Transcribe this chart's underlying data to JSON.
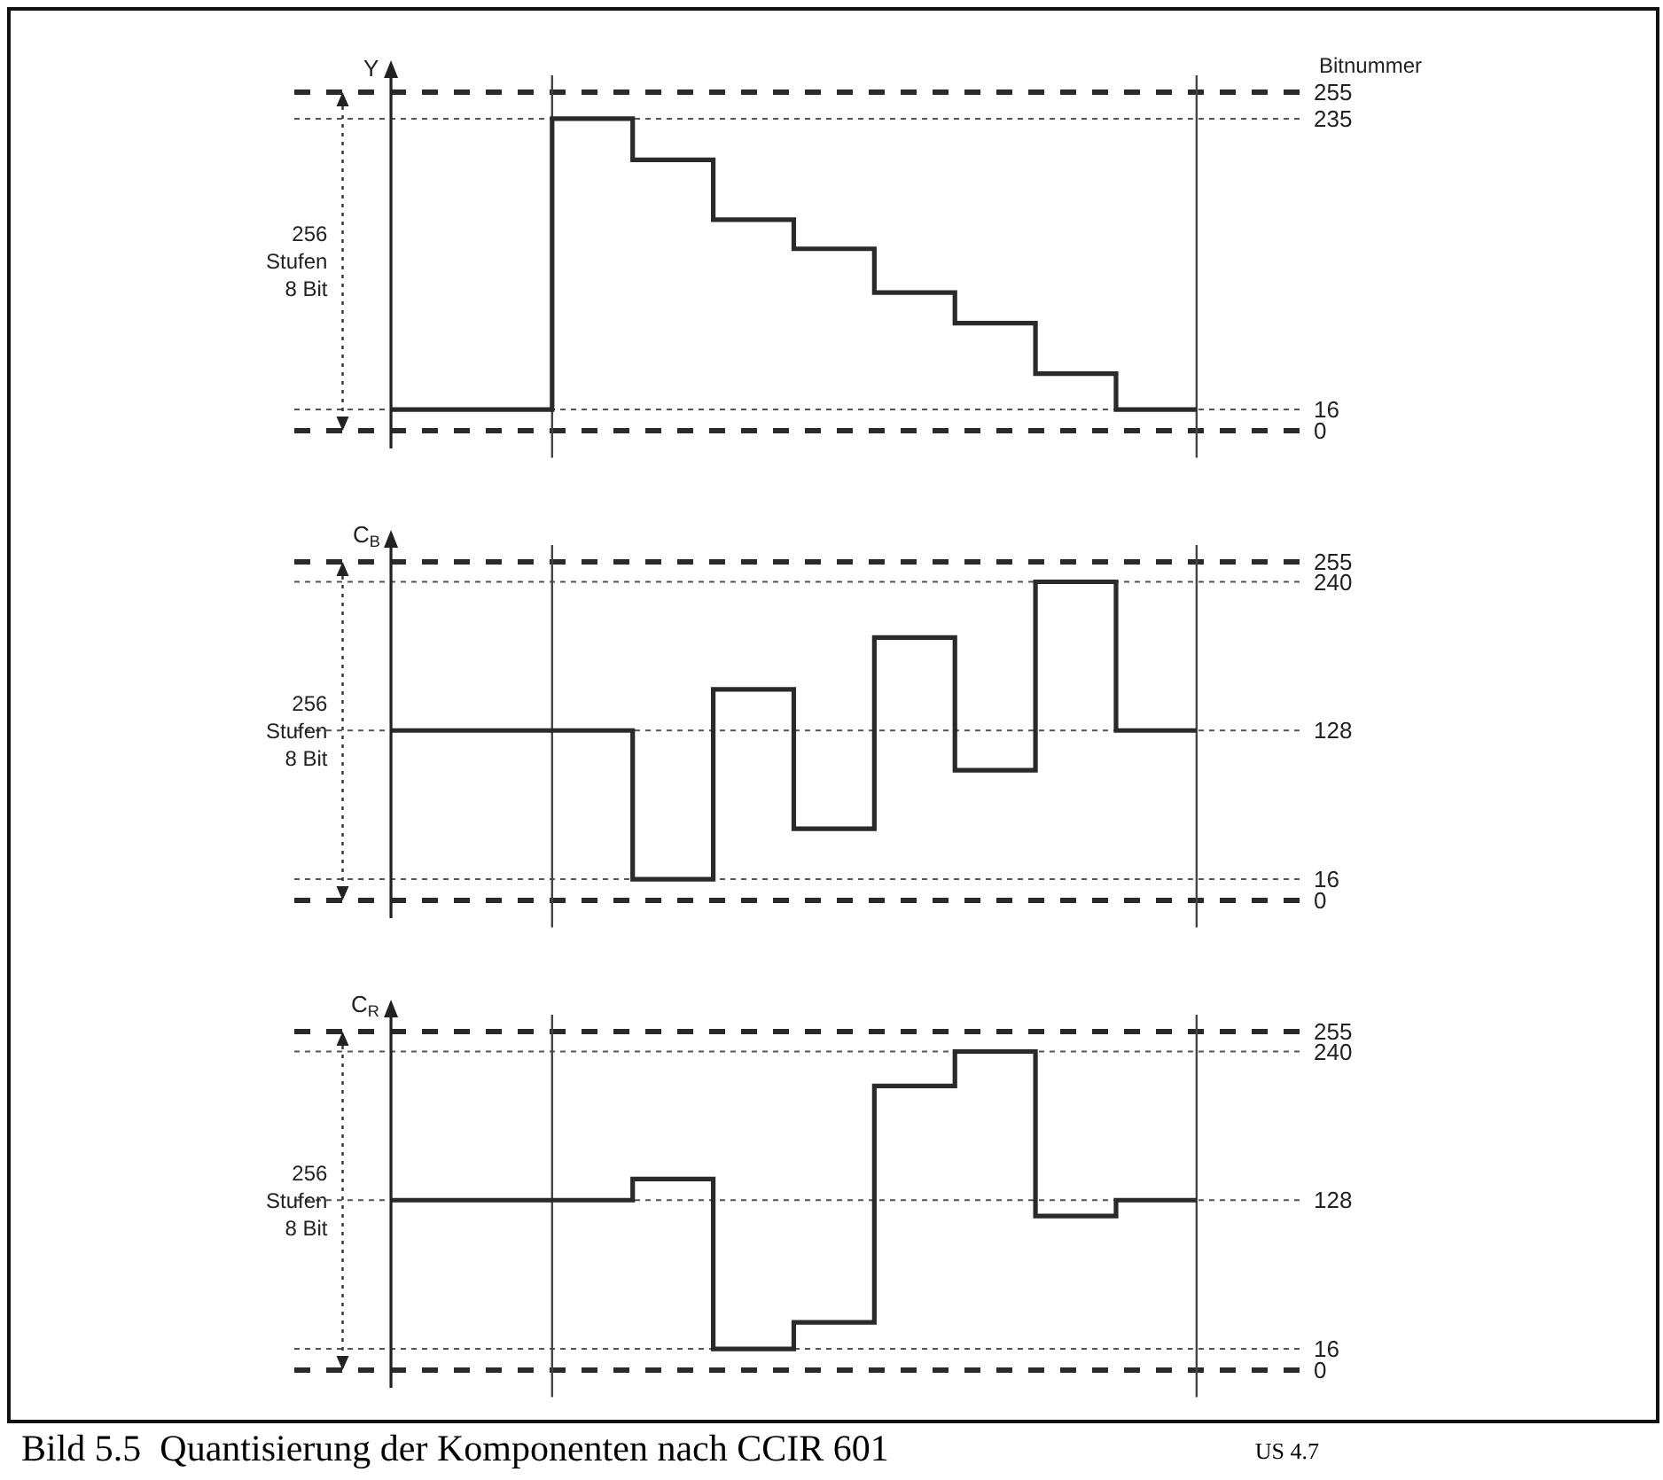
{
  "chart_data": [
    {
      "type": "step",
      "ylabel": "Y",
      "annotations": [
        "256\nStufen\n8 Bit",
        "Bitnummer"
      ],
      "categories": [
        null,
        null,
        null,
        null,
        null,
        null,
        null,
        null,
        null,
        null,
        null
      ],
      "series": [
        {
          "color": "#2a2a2a",
          "values": [
            16,
            16,
            235,
            204,
            159,
            137,
            104,
            81,
            43,
            16,
            16
          ]
        }
      ],
      "ylim": [
        0,
        255
      ],
      "yticks": [
        0,
        16,
        235,
        255
      ],
      "tick_labels": "y",
      "ref_lines": [
        {
          "axis": "y",
          "value": 255,
          "line_style": "dashed",
          "color": "#2a2a2a"
        },
        {
          "axis": "y",
          "value": 0,
          "line_style": "dashed",
          "color": "#2a2a2a"
        },
        {
          "axis": "y",
          "value": 235,
          "line_style": "dotted",
          "color": "#555555"
        },
        {
          "axis": "y",
          "value": 16,
          "line_style": "dotted",
          "color": "#555555"
        }
      ]
    },
    {
      "type": "step",
      "ylabel": "C$_{B}$",
      "annotations": [
        "256\nStufen\n8 Bit"
      ],
      "categories": [
        null,
        null,
        null,
        null,
        null,
        null,
        null,
        null,
        null,
        null,
        null
      ],
      "series": [
        {
          "color": "#2a2a2a",
          "values": [
            128,
            128,
            128,
            16,
            159,
            54,
            198,
            98,
            240,
            128,
            128
          ]
        }
      ],
      "ylim": [
        0,
        255
      ],
      "yticks": [
        0,
        16,
        128,
        240,
        255
      ],
      "tick_labels": "y",
      "ref_lines": [
        {
          "axis": "y",
          "value": 255,
          "line_style": "dashed",
          "color": "#2a2a2a"
        },
        {
          "axis": "y",
          "value": 0,
          "line_style": "dashed",
          "color": "#2a2a2a"
        },
        {
          "axis": "y",
          "value": 240,
          "line_style": "dotted",
          "color": "#555555"
        },
        {
          "axis": "y",
          "value": 128,
          "line_style": "dotted",
          "color": "#555555"
        },
        {
          "axis": "y",
          "value": 16,
          "line_style": "dotted",
          "color": "#555555"
        }
      ]
    },
    {
      "type": "step",
      "ylabel": "C$_{R}$",
      "title": "Bild 5.5  Quantisierung der Komponenten nach CCIR 601",
      "subtitle": "US 4.7",
      "annotations": [
        "256\nStufen\n8 Bit"
      ],
      "categories": [
        null,
        null,
        null,
        null,
        null,
        null,
        null,
        null,
        null,
        null,
        null
      ],
      "series": [
        {
          "color": "#2a2a2a",
          "values": [
            128,
            128,
            128,
            144,
            16,
            36,
            214,
            240,
            116,
            128,
            128
          ]
        }
      ],
      "ylim": [
        0,
        255
      ],
      "yticks": [
        0,
        16,
        128,
        240,
        255
      ],
      "tick_labels": "y",
      "ref_lines": [
        {
          "axis": "y",
          "value": 255,
          "line_style": "dashed",
          "color": "#2a2a2a"
        },
        {
          "axis": "y",
          "value": 0,
          "line_style": "dashed",
          "color": "#2a2a2a"
        },
        {
          "axis": "y",
          "value": 240,
          "line_style": "dotted",
          "color": "#555555"
        },
        {
          "axis": "y",
          "value": 128,
          "line_style": "dotted",
          "color": "#555555"
        },
        {
          "axis": "y",
          "value": 16,
          "line_style": "dotted",
          "color": "#555555"
        }
      ]
    }
  ]
}
